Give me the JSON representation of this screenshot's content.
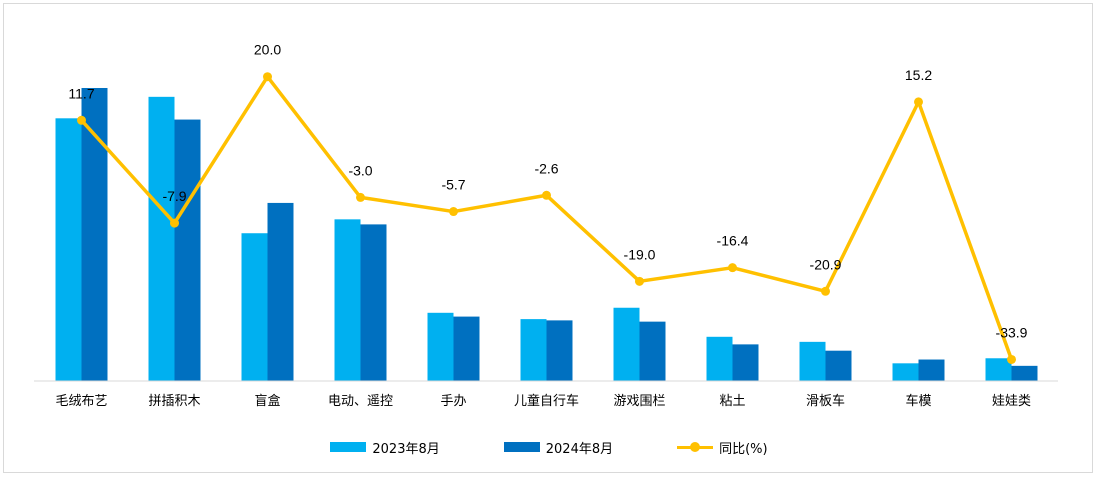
{
  "chart_data": {
    "type": "bar+line",
    "categories": [
      "毛绒布艺",
      "拼插积木",
      "盲盒",
      "电动、遥控",
      "手办",
      "儿童自行车",
      "游戏围栏",
      "粘土",
      "滑板车",
      "车模",
      "娃娃类"
    ],
    "series": [
      {
        "name": "2023年8月",
        "type": "bar",
        "color": "#00b0f0",
        "values": [
          208,
          225,
          117,
          128,
          54,
          49,
          58,
          35,
          31,
          14,
          18
        ]
      },
      {
        "name": "2024年8月",
        "type": "bar",
        "color": "#0070c0",
        "values": [
          232,
          207,
          141,
          124,
          51,
          48,
          47,
          29,
          24,
          17,
          12
        ]
      },
      {
        "name": "同比(%)",
        "type": "line",
        "color": "#ffc000",
        "values": [
          11.7,
          -7.9,
          20.0,
          -3.0,
          -5.7,
          -2.6,
          -19.0,
          -16.4,
          -20.9,
          15.2,
          -33.9
        ],
        "labels": [
          "11.7",
          "-7.9",
          "20.0",
          "-3.0",
          "-5.7",
          "-2.6",
          "-19.0",
          "-16.4",
          "-20.9",
          "15.2",
          "-33.9"
        ]
      }
    ],
    "bar_ylim": [
      0,
      270
    ],
    "line_ylim": [
      -38,
      27
    ],
    "grid": false,
    "legend": "bottom-center"
  }
}
